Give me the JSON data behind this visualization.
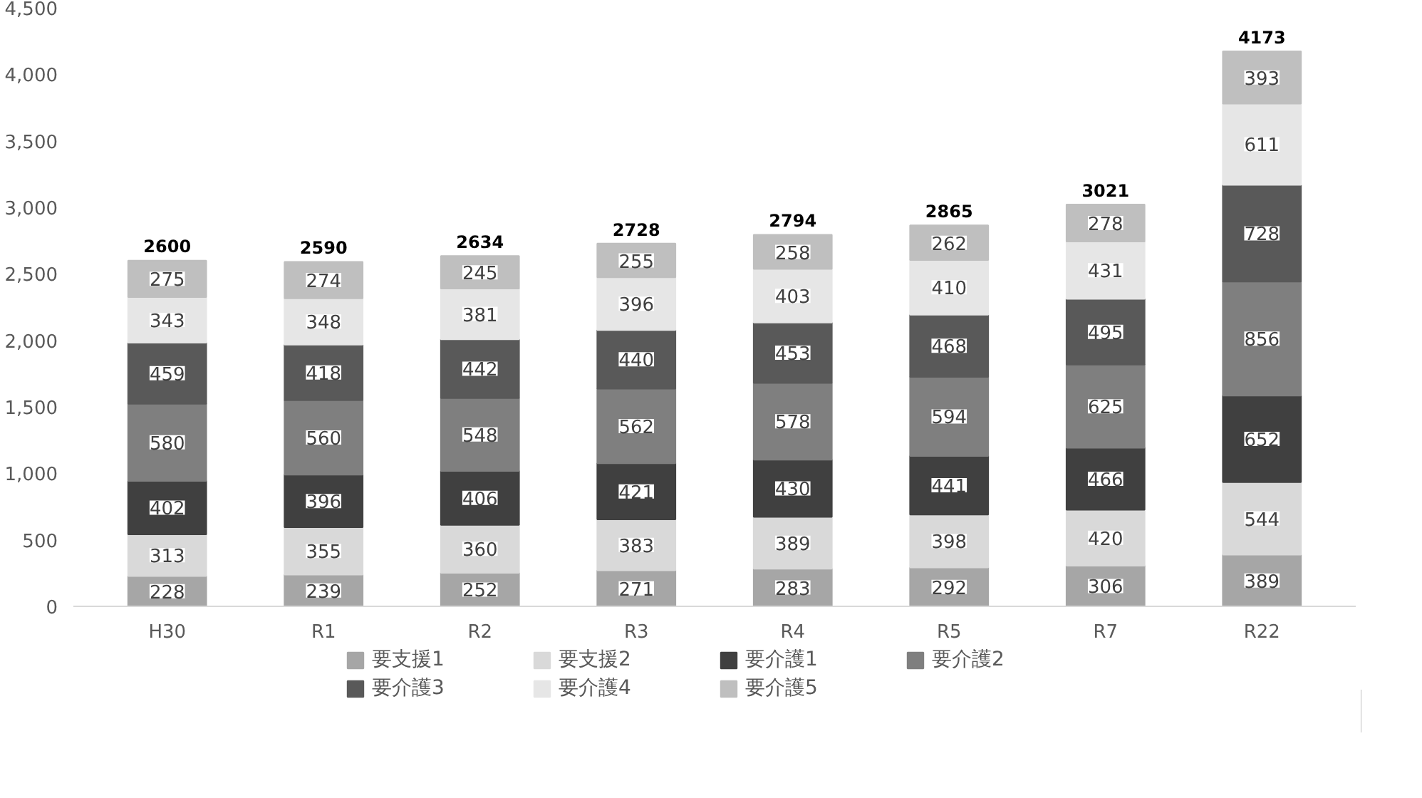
{
  "chart_data": {
    "type": "bar",
    "stacked": true,
    "categories": [
      "H30",
      "R1",
      "R2",
      "R3",
      "R4",
      "R5",
      "R7",
      "R22"
    ],
    "series": [
      {
        "name": "要支援1",
        "color": "#a6a6a6",
        "values": [
          228,
          239,
          252,
          271,
          283,
          292,
          306,
          389
        ]
      },
      {
        "name": "要支援2",
        "color": "#d9d9d9",
        "values": [
          313,
          355,
          360,
          383,
          389,
          398,
          420,
          544
        ]
      },
      {
        "name": "要介護1",
        "color": "#404040",
        "values": [
          402,
          396,
          406,
          421,
          430,
          441,
          466,
          652
        ]
      },
      {
        "name": "要介護2",
        "color": "#7f7f7f",
        "values": [
          580,
          560,
          548,
          562,
          578,
          594,
          625,
          856
        ]
      },
      {
        "name": "要介護3",
        "color": "#595959",
        "values": [
          459,
          418,
          442,
          440,
          453,
          468,
          495,
          728
        ]
      },
      {
        "name": "要介護4",
        "color": "#e6e6e6",
        "values": [
          343,
          348,
          381,
          396,
          403,
          410,
          431,
          611
        ]
      },
      {
        "name": "要介護5",
        "color": "#bfbfbf",
        "values": [
          275,
          274,
          245,
          255,
          258,
          262,
          278,
          393
        ]
      }
    ],
    "totals": [
      "2600",
      "2590",
      "2634",
      "2728",
      "2794",
      "2865",
      "3021",
      "4173"
    ],
    "data_labels": true,
    "ylim": [
      0,
      4500
    ],
    "yticks": [
      0,
      {
        "value": 500,
        "label": "500"
      },
      {
        "value": 1000,
        "label": "1,000"
      },
      {
        "value": 1500,
        "label": "1,500"
      },
      {
        "value": 2000,
        "label": "2,000"
      },
      {
        "value": 2500,
        "label": "2,500"
      },
      {
        "value": 3000,
        "label": "3,000"
      },
      {
        "value": 3500,
        "label": "3,500"
      },
      {
        "value": 4000,
        "label": "4,000"
      },
      {
        "value": 4500,
        "label": "4,500"
      }
    ],
    "legend": "bottom"
  }
}
